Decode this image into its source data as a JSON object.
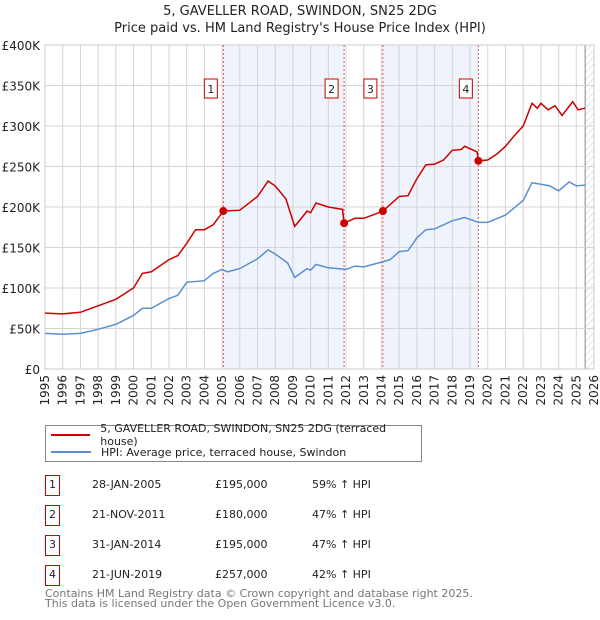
{
  "title": "5, GAVELLER ROAD, SWINDON, SN25 2DG",
  "subtitle": "Price paid vs. HM Land Registry's House Price Index (HPI)",
  "chart_data": {
    "type": "line",
    "ylim": [
      0,
      400000
    ],
    "xlim": [
      1995,
      2026
    ],
    "y_ticks": [
      {
        "v": 0,
        "label": "£0"
      },
      {
        "v": 50000,
        "label": "£50K"
      },
      {
        "v": 100000,
        "label": "£100K"
      },
      {
        "v": 150000,
        "label": "£150K"
      },
      {
        "v": 200000,
        "label": "£200K"
      },
      {
        "v": 250000,
        "label": "£250K"
      },
      {
        "v": 300000,
        "label": "£300K"
      },
      {
        "v": 350000,
        "label": "£350K"
      },
      {
        "v": 400000,
        "label": "£400K"
      }
    ],
    "x_ticks": [
      "1995",
      "1996",
      "1997",
      "1998",
      "1999",
      "2000",
      "2001",
      "2002",
      "2003",
      "2004",
      "2005",
      "2006",
      "2007",
      "2008",
      "2009",
      "2010",
      "2011",
      "2012",
      "2013",
      "2014",
      "2015",
      "2016",
      "2017",
      "2018",
      "2019",
      "2020",
      "2021",
      "2022",
      "2023",
      "2024",
      "2025",
      "2026"
    ],
    "grid": true,
    "shaded_ranges": [
      [
        2005.07,
        2011.89
      ],
      [
        2014.08,
        2019.47
      ]
    ],
    "forecast_hatch_from": 2025.5,
    "series": [
      {
        "name": "5, GAVELLER ROAD, SWINDON, SN25 2DG (terraced house)",
        "color": "#cc0000",
        "points": [
          [
            1995,
            69000
          ],
          [
            1996,
            68000
          ],
          [
            1997,
            70000
          ],
          [
            1998,
            78000
          ],
          [
            1999,
            86000
          ],
          [
            2000,
            100000
          ],
          [
            2000.5,
            118000
          ],
          [
            2001,
            120000
          ],
          [
            2002,
            135000
          ],
          [
            2002.5,
            140000
          ],
          [
            2003,
            155000
          ],
          [
            2003.5,
            172000
          ],
          [
            2004,
            172000
          ],
          [
            2004.5,
            178000
          ],
          [
            2005.07,
            195000
          ],
          [
            2006,
            196000
          ],
          [
            2007,
            213000
          ],
          [
            2007.6,
            232000
          ],
          [
            2008,
            226000
          ],
          [
            2008.6,
            210000
          ],
          [
            2009.1,
            176000
          ],
          [
            2009.8,
            195000
          ],
          [
            2010,
            193000
          ],
          [
            2010.3,
            205000
          ],
          [
            2011,
            200000
          ],
          [
            2011.8,
            197000
          ],
          [
            2011.89,
            180000
          ],
          [
            2012.5,
            186000
          ],
          [
            2013,
            186000
          ],
          [
            2013.5,
            190000
          ],
          [
            2014.08,
            195000
          ],
          [
            2015,
            213000
          ],
          [
            2015.5,
            214000
          ],
          [
            2016,
            235000
          ],
          [
            2016.5,
            252000
          ],
          [
            2017,
            253000
          ],
          [
            2017.5,
            258000
          ],
          [
            2018,
            270000
          ],
          [
            2018.5,
            271000
          ],
          [
            2018.7,
            275000
          ],
          [
            2019.4,
            268000
          ],
          [
            2019.47,
            257000
          ],
          [
            2020,
            258000
          ],
          [
            2020.5,
            265000
          ],
          [
            2021,
            275000
          ],
          [
            2021.5,
            288000
          ],
          [
            2022,
            300000
          ],
          [
            2022.5,
            328000
          ],
          [
            2022.8,
            322000
          ],
          [
            2023,
            328000
          ],
          [
            2023.4,
            320000
          ],
          [
            2023.8,
            325000
          ],
          [
            2024.2,
            313000
          ],
          [
            2024.8,
            330000
          ],
          [
            2025.1,
            320000
          ],
          [
            2025.5,
            322000
          ]
        ]
      },
      {
        "name": "HPI: Average price, terraced house, Swindon",
        "color": "#5b8fd0",
        "points": [
          [
            1995,
            44000
          ],
          [
            1996,
            43000
          ],
          [
            1997,
            44000
          ],
          [
            1998,
            49000
          ],
          [
            1999,
            55000
          ],
          [
            2000,
            66000
          ],
          [
            2000.5,
            75000
          ],
          [
            2001,
            75000
          ],
          [
            2002,
            87000
          ],
          [
            2002.5,
            91000
          ],
          [
            2003,
            107000
          ],
          [
            2004,
            109000
          ],
          [
            2004.5,
            118000
          ],
          [
            2005,
            123000
          ],
          [
            2005.3,
            120000
          ],
          [
            2006,
            124000
          ],
          [
            2007,
            136000
          ],
          [
            2007.6,
            147000
          ],
          [
            2008,
            142000
          ],
          [
            2008.7,
            131000
          ],
          [
            2009.1,
            113000
          ],
          [
            2009.8,
            124000
          ],
          [
            2010,
            122000
          ],
          [
            2010.3,
            129000
          ],
          [
            2011,
            125000
          ],
          [
            2012,
            123000
          ],
          [
            2012.5,
            127000
          ],
          [
            2013,
            126000
          ],
          [
            2014,
            132000
          ],
          [
            2014.5,
            135000
          ],
          [
            2015,
            145000
          ],
          [
            2015.5,
            146000
          ],
          [
            2016,
            162000
          ],
          [
            2016.5,
            172000
          ],
          [
            2017,
            173000
          ],
          [
            2018,
            183000
          ],
          [
            2018.7,
            187000
          ],
          [
            2019.5,
            181000
          ],
          [
            2020,
            181000
          ],
          [
            2021,
            190000
          ],
          [
            2021.5,
            199000
          ],
          [
            2022,
            208000
          ],
          [
            2022.5,
            230000
          ],
          [
            2023,
            228000
          ],
          [
            2023.5,
            226000
          ],
          [
            2024,
            220000
          ],
          [
            2024.6,
            231000
          ],
          [
            2025,
            226000
          ],
          [
            2025.5,
            227000
          ]
        ]
      }
    ],
    "sales": [
      {
        "label": "1",
        "x": 2005.07,
        "price": 195000
      },
      {
        "label": "2",
        "x": 2011.89,
        "price": 180000
      },
      {
        "label": "3",
        "x": 2014.08,
        "price": 195000
      },
      {
        "label": "4",
        "x": 2019.47,
        "price": 257000
      }
    ]
  },
  "legend": {
    "property": "5, GAVELLER ROAD, SWINDON, SN25 2DG (terraced house)",
    "hpi": "HPI: Average price, terraced house, Swindon"
  },
  "transactions": [
    {
      "num": "1",
      "date": "28-JAN-2005",
      "price": "£195,000",
      "hpi": "59% ↑ HPI"
    },
    {
      "num": "2",
      "date": "21-NOV-2011",
      "price": "£180,000",
      "hpi": "47% ↑ HPI"
    },
    {
      "num": "3",
      "date": "31-JAN-2014",
      "price": "£195,000",
      "hpi": "47% ↑ HPI"
    },
    {
      "num": "4",
      "date": "21-JUN-2019",
      "price": "£257,000",
      "hpi": "42% ↑ HPI"
    }
  ],
  "footer": {
    "line1": "Contains HM Land Registry data © Crown copyright and database right 2025.",
    "line2": "This data is licensed under the Open Government Licence v3.0."
  }
}
